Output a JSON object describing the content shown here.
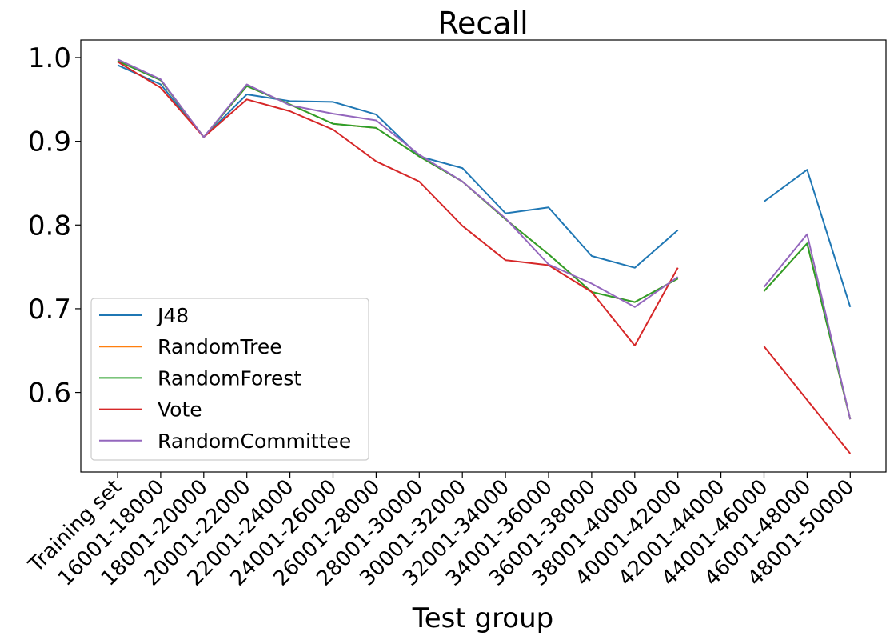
{
  "chart_data": {
    "type": "line",
    "title": "Recall",
    "xlabel": "Test group",
    "ylabel": "",
    "ylim": [
      0.505,
      1.021
    ],
    "yticks": [
      0.6,
      0.7,
      0.8,
      0.9,
      1.0
    ],
    "ytick_labels": [
      "0.6",
      "0.7",
      "0.8",
      "0.9",
      "1.0"
    ],
    "grid": false,
    "legend_position": "lower-left",
    "categories": [
      "Training set",
      "16001-18000",
      "18001-20000",
      "20001-22000",
      "22001-24000",
      "24001-26000",
      "26001-28000",
      "28001-30000",
      "30001-32000",
      "32001-34000",
      "34001-36000",
      "36001-38000",
      "38001-40000",
      "40001-42000",
      "42001-44000",
      "44001-46000",
      "46001-48000",
      "48001-50000"
    ],
    "series": [
      {
        "name": "J48",
        "color": "#1f77b4",
        "values": [
          0.991,
          0.968,
          0.905,
          0.956,
          0.948,
          0.947,
          0.932,
          0.882,
          0.868,
          0.814,
          0.821,
          0.763,
          0.749,
          0.794,
          null,
          0.828,
          0.866,
          0.702
        ]
      },
      {
        "name": "RandomTree",
        "color": "#ff7f0e",
        "values": [
          0.996,
          0.973,
          0.905,
          0.966,
          0.944,
          0.921,
          0.916,
          0.882,
          0.852,
          0.807,
          0.765,
          0.72,
          0.708,
          0.736,
          null,
          0.721,
          0.778,
          0.568
        ]
      },
      {
        "name": "RandomForest",
        "color": "#2ca02c",
        "values": [
          0.996,
          0.973,
          0.905,
          0.966,
          0.944,
          0.921,
          0.916,
          0.882,
          0.852,
          0.807,
          0.765,
          0.72,
          0.708,
          0.736,
          null,
          0.721,
          0.778,
          0.568
        ]
      },
      {
        "name": "Vote",
        "color": "#d62728",
        "values": [
          0.995,
          0.964,
          0.905,
          0.95,
          0.936,
          0.914,
          0.876,
          0.852,
          0.799,
          0.758,
          0.752,
          0.72,
          0.656,
          0.749,
          null,
          0.655,
          0.591,
          0.527
        ]
      },
      {
        "name": "RandomCommittee",
        "color": "#9467bd",
        "values": [
          0.998,
          0.974,
          0.905,
          0.968,
          0.943,
          0.933,
          0.925,
          0.884,
          0.852,
          0.808,
          0.753,
          0.73,
          0.702,
          0.738,
          null,
          0.726,
          0.789,
          0.568
        ]
      }
    ]
  }
}
